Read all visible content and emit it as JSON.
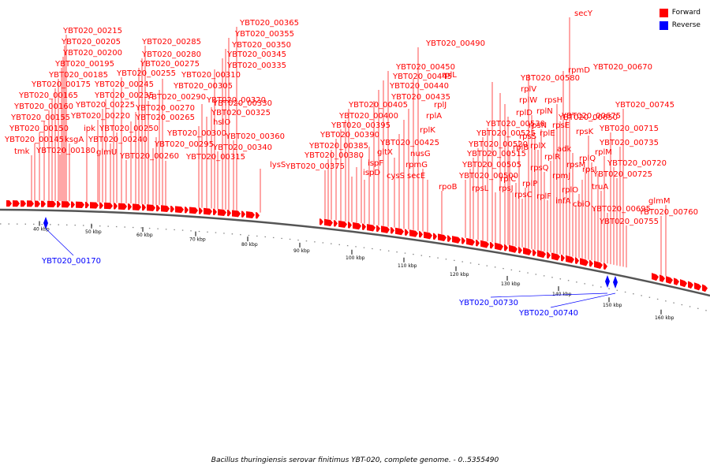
{
  "legend": {
    "forward_label": "Forward",
    "reverse_label": "Reverse",
    "forward_color": "#ff0000",
    "reverse_color": "#0000ff"
  },
  "caption": "Bacillus thuringiensis serovar finitimus YBT-020, complete genome. - 0..5355490",
  "ticks": [
    "40 kbp",
    "50 kbp",
    "60 kbp",
    "70 kbp",
    "80 kbp",
    "90 kbp",
    "100 kbp",
    "110 kbp",
    "120 kbp",
    "130 kbp",
    "140 kbp",
    "150 kbp",
    "160 kbp"
  ],
  "forward_labels": [
    "YBT020_00215",
    "YBT020_00205",
    "YBT020_00200",
    "YBT020_00195",
    "YBT020_00185",
    "YBT020_00175",
    "YBT020_00165",
    "YBT020_00160",
    "YBT020_00155",
    "YBT020_00150",
    "YBT020_00145",
    "tmk",
    "ksgA",
    "YBT020_00180",
    "ipk",
    "glmU",
    "YBT020_00225",
    "YBT020_00220",
    "YBT020_00235",
    "YBT020_00240",
    "YBT020_00245",
    "YBT020_00250",
    "YBT020_00255",
    "YBT020_00260",
    "YBT020_00265",
    "YBT020_00270",
    "YBT020_00275",
    "YBT020_00280",
    "YBT020_00285",
    "YBT020_00290",
    "YBT020_00295",
    "YBT020_00300",
    "YBT020_00305",
    "YBT020_00310",
    "YBT020_00315",
    "hslO",
    "YBT020_00320",
    "YBT020_00325",
    "YBT020_00330",
    "YBT020_00335",
    "YBT020_00340",
    "YBT020_00345",
    "YBT020_00350",
    "YBT020_00355",
    "YBT020_00360",
    "YBT020_00365",
    "lysS",
    "YBT020_00375",
    "YBT020_00380",
    "YBT020_00385",
    "YBT020_00390",
    "YBT020_00395",
    "YBT020_00400",
    "YBT020_00405",
    "ispD",
    "ispF",
    "gltX",
    "cysS",
    "YBT020_00425",
    "YBT020_00435",
    "YBT020_00440",
    "YBT020_00445",
    "YBT020_00450",
    "nusG",
    "rplK",
    "rplA",
    "rplJ",
    "rplL",
    "YBT020_00490",
    "rpmG",
    "secE",
    "rpoB",
    "YBT020_00500",
    "YBT020_00505",
    "YBT020_00515",
    "YBT020_00520",
    "YBT020_00525",
    "YBT020_00530",
    "YBT020_00580",
    "rpsL",
    "rplV",
    "rplW",
    "rplD",
    "rplB",
    "rpsJ",
    "rplC",
    "rpsS",
    "rpsC",
    "rplP",
    "rpmD",
    "rplN",
    "rplE",
    "rplX",
    "rpsN",
    "rpsQ",
    "rplF",
    "rplR",
    "rpsE",
    "rpsH",
    "YBT020_00650",
    "YBT020_00670",
    "YBT020_00675",
    "secY",
    "adk",
    "infA",
    "rplO",
    "rpmJ",
    "rpsM",
    "rpsK",
    "rplQ",
    "cbiO",
    "rpsI",
    "truA",
    "rplM",
    "YBT020_00695",
    "YBT020_00715",
    "YBT020_00720",
    "YBT020_00725",
    "YBT020_00735",
    "YBT020_00745",
    "YBT020_00755",
    "YBT020_00760",
    "glmM"
  ],
  "reverse_labels": [
    "YBT020_00170",
    "YBT020_00730",
    "YBT020_00740"
  ]
}
